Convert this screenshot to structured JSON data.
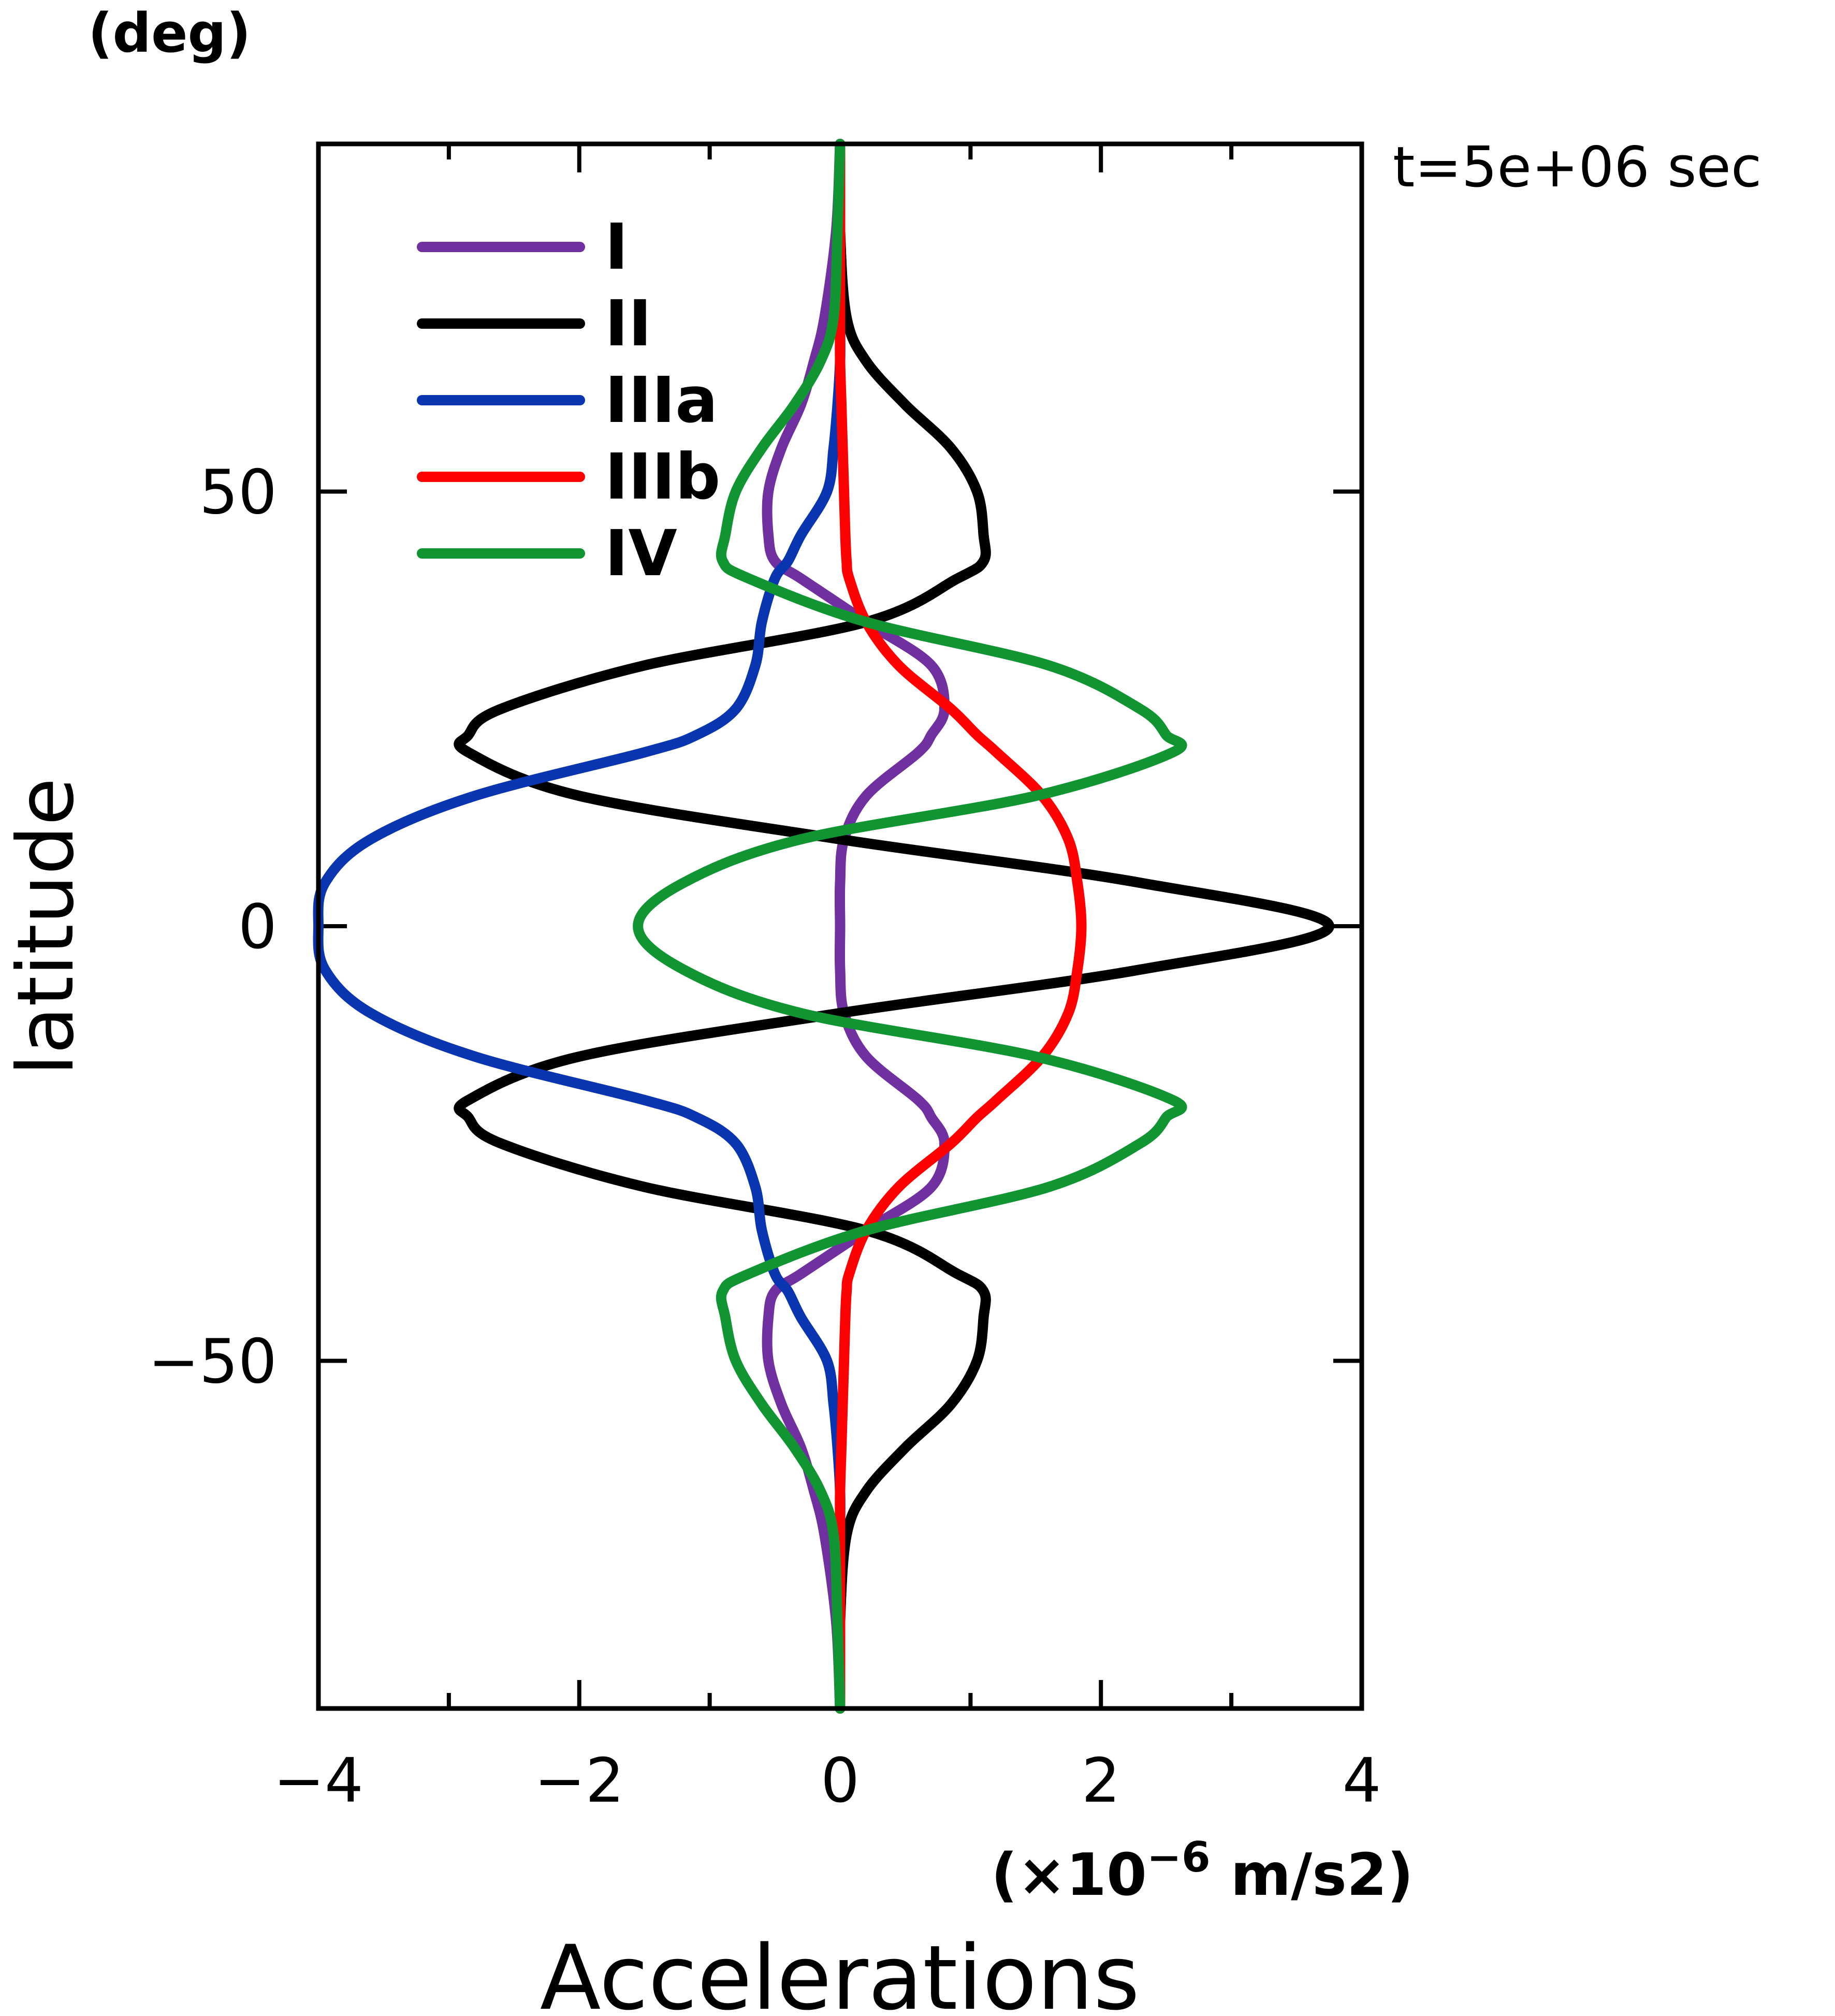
{
  "chart_data": {
    "type": "line",
    "ylabel": "latitude",
    "yunit": "(deg)",
    "xlabel": "Accelerations",
    "xunit_prefix": "(×10",
    "xunit_exp": "−6",
    "xunit_suffix": " m/s2)",
    "time_label": "t=5e+06 sec",
    "xlim": [
      -4,
      4
    ],
    "ylim": [
      -90,
      90
    ],
    "xticks_major": [
      {
        "value": -4,
        "label": "−4"
      },
      {
        "value": -2,
        "label": "−2"
      },
      {
        "value": 0,
        "label": "0"
      },
      {
        "value": 2,
        "label": "2"
      },
      {
        "value": 4,
        "label": "4"
      }
    ],
    "xticks_minor": [
      -3,
      -1,
      1,
      3
    ],
    "yticks_major": [
      {
        "value": 50,
        "label": "50"
      },
      {
        "value": 0,
        "label": "0"
      },
      {
        "value": -50,
        "label": "−50"
      }
    ],
    "legend_position": "top-left",
    "lat": [
      -90,
      -80,
      -70,
      -65,
      -60,
      -55,
      -50,
      -45,
      -42,
      -40,
      -35,
      -30,
      -25,
      -22,
      -20,
      -15,
      -10,
      -5,
      0,
      5,
      10,
      15,
      20,
      22,
      25,
      30,
      35,
      40,
      42,
      45,
      50,
      55,
      60,
      65,
      70,
      80,
      90
    ],
    "series": [
      {
        "name": "I",
        "color": "#7030a0",
        "values": [
          0,
          -0.03,
          -0.12,
          -0.2,
          -0.3,
          -0.45,
          -0.55,
          -0.55,
          -0.5,
          -0.3,
          0.2,
          0.7,
          0.8,
          0.7,
          0.6,
          0.2,
          0.03,
          0.0,
          0.0,
          0.0,
          0.03,
          0.2,
          0.6,
          0.7,
          0.8,
          0.7,
          0.2,
          -0.3,
          -0.5,
          -0.55,
          -0.55,
          -0.45,
          -0.3,
          -0.2,
          -0.12,
          -0.03,
          0
        ]
      },
      {
        "name": "II",
        "color": "#000000",
        "values": [
          0,
          0,
          0.05,
          0.2,
          0.5,
          0.85,
          1.05,
          1.1,
          1.1,
          0.9,
          0.2,
          -1.5,
          -2.6,
          -2.85,
          -2.85,
          -2.0,
          0.0,
          2.3,
          3.75,
          2.3,
          0.0,
          -2.0,
          -2.85,
          -2.85,
          -2.6,
          -1.5,
          0.2,
          0.9,
          1.1,
          1.1,
          1.05,
          0.85,
          0.5,
          0.2,
          0.05,
          0,
          0
        ]
      },
      {
        "name": "IIIa",
        "color": "#0a35b0",
        "values": [
          0,
          0,
          0,
          0,
          -0.02,
          -0.05,
          -0.1,
          -0.3,
          -0.4,
          -0.5,
          -0.6,
          -0.65,
          -0.8,
          -1.1,
          -1.5,
          -2.8,
          -3.6,
          -3.95,
          -4.0,
          -3.95,
          -3.6,
          -2.8,
          -1.5,
          -1.1,
          -0.8,
          -0.65,
          -0.6,
          -0.5,
          -0.4,
          -0.3,
          -0.1,
          -0.05,
          -0.02,
          0,
          0,
          0,
          0
        ]
      },
      {
        "name": "IIIb",
        "color": "#ff0000",
        "values": [
          0,
          0,
          0,
          0,
          0.01,
          0.02,
          0.03,
          0.04,
          0.05,
          0.07,
          0.2,
          0.45,
          0.85,
          1.05,
          1.2,
          1.55,
          1.75,
          1.82,
          1.85,
          1.82,
          1.75,
          1.55,
          1.2,
          1.05,
          0.85,
          0.45,
          0.2,
          0.07,
          0.05,
          0.04,
          0.03,
          0.02,
          0.01,
          0,
          0,
          0,
          0
        ]
      },
      {
        "name": "IV",
        "color": "#119533",
        "values": [
          0,
          -0.02,
          -0.05,
          -0.15,
          -0.35,
          -0.6,
          -0.8,
          -0.88,
          -0.9,
          -0.7,
          0.2,
          1.6,
          2.3,
          2.5,
          2.55,
          1.5,
          -0.3,
          -1.2,
          -1.55,
          -1.2,
          -0.3,
          1.5,
          2.55,
          2.5,
          2.3,
          1.6,
          0.2,
          -0.7,
          -0.9,
          -0.88,
          -0.8,
          -0.6,
          -0.35,
          -0.15,
          -0.05,
          -0.02,
          0
        ]
      }
    ]
  }
}
